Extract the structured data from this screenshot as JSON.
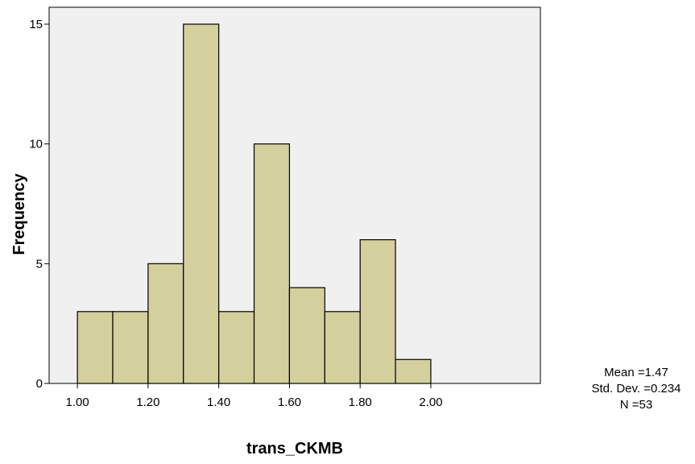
{
  "chart_data": {
    "type": "bar",
    "title": "",
    "xlabel": "trans_CKMB",
    "ylabel": "Frequency",
    "bins": [
      {
        "start": 1.0,
        "end": 1.1,
        "count": 3
      },
      {
        "start": 1.1,
        "end": 1.2,
        "count": 3
      },
      {
        "start": 1.2,
        "end": 1.3,
        "count": 5
      },
      {
        "start": 1.3,
        "end": 1.4,
        "count": 15
      },
      {
        "start": 1.4,
        "end": 1.5,
        "count": 3
      },
      {
        "start": 1.5,
        "end": 1.6,
        "count": 10
      },
      {
        "start": 1.6,
        "end": 1.7,
        "count": 4
      },
      {
        "start": 1.7,
        "end": 1.8,
        "count": 3
      },
      {
        "start": 1.8,
        "end": 1.9,
        "count": 6
      },
      {
        "start": 1.9,
        "end": 2.0,
        "count": 1
      }
    ],
    "xlim": [
      0.92,
      2.31
    ],
    "ylim": [
      0,
      15.0
    ],
    "x_ticks": [
      {
        "value": 1.0,
        "label": "1.00"
      },
      {
        "value": 1.2,
        "label": "1.20"
      },
      {
        "value": 1.4,
        "label": "1.40"
      },
      {
        "value": 1.6,
        "label": "1.60"
      },
      {
        "value": 1.8,
        "label": "1.80"
      },
      {
        "value": 2.0,
        "label": "2.00"
      }
    ],
    "y_ticks": [
      {
        "value": 0,
        "label": "0"
      },
      {
        "value": 5,
        "label": "5"
      },
      {
        "value": 10,
        "label": "10"
      },
      {
        "value": 15,
        "label": "15"
      }
    ],
    "grid": false,
    "stats": {
      "mean": "Mean =1.47",
      "std_dev": "Std. Dev. =0.234",
      "n": "N =53"
    },
    "colors": {
      "bar_fill": "#d4d09e",
      "bar_stroke": "#000000",
      "plot_background": "#f0f0f0",
      "axis": "#000000"
    }
  }
}
